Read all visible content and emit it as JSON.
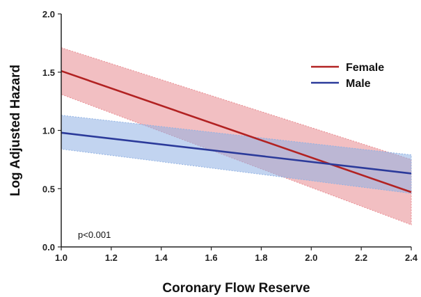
{
  "chart_data": {
    "type": "line",
    "xlabel": "Coronary Flow Reserve",
    "ylabel": "Log Adjusted Hazard",
    "xlim": [
      1.0,
      2.4
    ],
    "ylim": [
      0.0,
      2.0
    ],
    "x_ticks": [
      1.0,
      1.2,
      1.4,
      1.6,
      1.8,
      2.0,
      2.2,
      2.4
    ],
    "x_tick_labels": [
      "1.0",
      "1.2",
      "1.4",
      "1.6",
      "1.8",
      "2.0",
      "2.2",
      "2.4"
    ],
    "y_ticks": [
      0.0,
      0.5,
      1.0,
      1.5,
      2.0
    ],
    "y_tick_labels": [
      "0.0",
      "0.5",
      "1.0",
      "1.5",
      "2.0"
    ],
    "grid": false,
    "legend_position": "top-right",
    "annotation": "p<0.001",
    "series": [
      {
        "name": "Female",
        "color": "#b22222",
        "band_color": "#e88a8f",
        "x": [
          1.0,
          2.4
        ],
        "y": [
          1.51,
          0.47
        ],
        "ci_lower": [
          1.31,
          0.19
        ],
        "ci_upper": [
          1.71,
          0.75
        ]
      },
      {
        "name": "Male",
        "color": "#2b3a9a",
        "band_color": "#8fb1e3",
        "x": [
          1.0,
          2.4
        ],
        "y": [
          0.98,
          0.63
        ],
        "ci_lower": [
          0.84,
          0.46
        ],
        "ci_upper": [
          1.13,
          0.79
        ]
      }
    ]
  }
}
